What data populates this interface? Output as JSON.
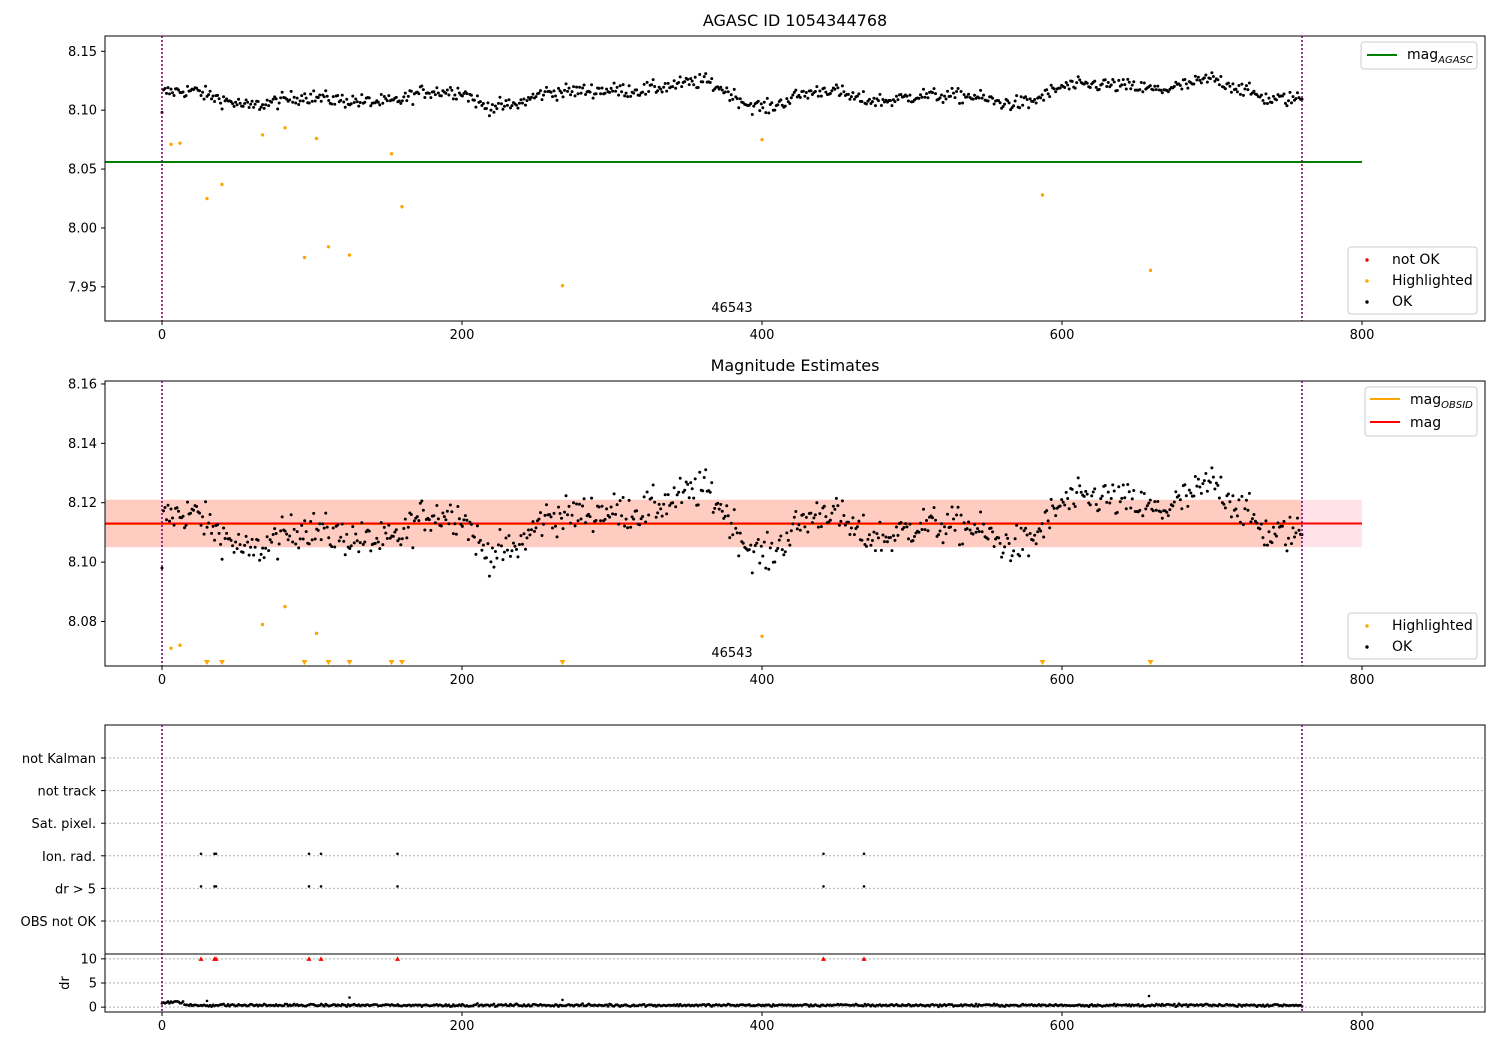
{
  "figure": {
    "top_title": "AGASC ID 1054344768",
    "middle_title": "Magnitude Estimates",
    "obsid_label": "46543"
  },
  "colors": {
    "ok": "#000000",
    "highlighted": "#ffa500",
    "not_ok": "#ff0000",
    "mag_agasc": "#008000",
    "mag_obsid": "#ffa500",
    "mag": "#ff0000",
    "band_mag": "#ffc0cb",
    "band_obsid": "#ffa07a",
    "obsid_boundary": "#800080",
    "grid": "#b0b0b0"
  },
  "chart_data": [
    {
      "type": "scatter",
      "title": "AGASC ID 1054344768",
      "xlim": [
        -38,
        882
      ],
      "ylim": [
        7.921,
        8.163
      ],
      "xticks": [
        0,
        200,
        400,
        600,
        800
      ],
      "yticks": [
        7.95,
        8.0,
        8.05,
        8.1,
        8.15
      ],
      "ytick_labels": [
        "7.95",
        "8.00",
        "8.05",
        "8.10",
        "8.15"
      ],
      "obsid_boundaries": [
        0,
        760
      ],
      "obsid_label": "46543",
      "hlines": [
        {
          "name": "mag_AGASC",
          "y": 8.056,
          "x": [
            -38,
            800
          ]
        }
      ],
      "legend_lines": [
        {
          "name": "mag",
          "sub": "AGASC"
        }
      ],
      "legend_markers": [
        {
          "name": "not OK",
          "kind": "not_ok"
        },
        {
          "name": "Highlighted",
          "kind": "highlighted"
        },
        {
          "name": "OK",
          "kind": "ok"
        }
      ],
      "highlighted": {
        "x": [
          6,
          12,
          30,
          40,
          67,
          82,
          95,
          103,
          111,
          125,
          153,
          160,
          267,
          400,
          587,
          659
        ],
        "y": [
          8.071,
          8.072,
          8.025,
          8.037,
          8.079,
          8.085,
          7.975,
          8.076,
          7.984,
          7.977,
          8.063,
          8.018,
          7.951,
          8.075,
          8.028,
          7.964
        ]
      },
      "ok_model": {
        "x_start": 0,
        "x_end": 760,
        "count": 760,
        "knots": [
          [
            0,
            8.115
          ],
          [
            20,
            8.117
          ],
          [
            40,
            8.109
          ],
          [
            58,
            8.103
          ],
          [
            75,
            8.107
          ],
          [
            95,
            8.112
          ],
          [
            115,
            8.109
          ],
          [
            138,
            8.107
          ],
          [
            155,
            8.107
          ],
          [
            175,
            8.116
          ],
          [
            200,
            8.116
          ],
          [
            215,
            8.103
          ],
          [
            235,
            8.104
          ],
          [
            255,
            8.115
          ],
          [
            290,
            8.117
          ],
          [
            320,
            8.117
          ],
          [
            345,
            8.122
          ],
          [
            362,
            8.125
          ],
          [
            375,
            8.117
          ],
          [
            392,
            8.104
          ],
          [
            405,
            8.102
          ],
          [
            425,
            8.113
          ],
          [
            445,
            8.118
          ],
          [
            465,
            8.109
          ],
          [
            485,
            8.108
          ],
          [
            505,
            8.113
          ],
          [
            520,
            8.112
          ],
          [
            540,
            8.112
          ],
          [
            560,
            8.106
          ],
          [
            578,
            8.106
          ],
          [
            600,
            8.12
          ],
          [
            625,
            8.122
          ],
          [
            645,
            8.12
          ],
          [
            665,
            8.117
          ],
          [
            685,
            8.122
          ],
          [
            700,
            8.127
          ],
          [
            720,
            8.118
          ],
          [
            738,
            8.109
          ],
          [
            760,
            8.11
          ]
        ],
        "amplitude": 0.0055
      }
    },
    {
      "type": "scatter",
      "title": "Magnitude Estimates",
      "xlim": [
        -38,
        882
      ],
      "ylim": [
        8.065,
        8.161
      ],
      "xticks": [
        0,
        200,
        400,
        600,
        800
      ],
      "yticks": [
        8.08,
        8.1,
        8.12,
        8.14,
        8.16
      ],
      "ytick_labels": [
        "8.08",
        "8.10",
        "8.12",
        "8.14",
        "8.16"
      ],
      "obsid_boundaries": [
        0,
        760
      ],
      "obsid_label": "46543",
      "mag_line": {
        "name": "mag",
        "y": 8.113,
        "band": [
          8.105,
          8.121
        ],
        "x": [
          -38,
          800
        ]
      },
      "mag_obsid_line": {
        "name": "mag_OBSID",
        "y": 8.113,
        "band": [
          8.105,
          8.121
        ],
        "x": [
          -38,
          760
        ]
      },
      "legend_lines": [
        {
          "name": "mag",
          "sub": "OBSID"
        },
        {
          "name": "mag",
          "sub": ""
        }
      ],
      "legend_markers": [
        {
          "name": "Highlighted",
          "kind": "highlighted"
        },
        {
          "name": "OK",
          "kind": "ok"
        }
      ],
      "highlighted": {
        "x": [
          6,
          12,
          67,
          82,
          103,
          400
        ],
        "y": [
          8.071,
          8.072,
          8.079,
          8.085,
          8.076,
          8.075
        ]
      },
      "below_range_x": [
        30,
        40,
        95,
        111,
        125,
        153,
        160,
        267,
        587,
        659
      ],
      "ok_model": "same as chart_data.0.ok_model"
    },
    {
      "type": "scatter",
      "title": "",
      "xlim": [
        -38,
        882
      ],
      "xticks": [
        0,
        200,
        400,
        600,
        800
      ],
      "obsid_boundaries": [
        0,
        760
      ],
      "flag_rows": [
        "not Kalman",
        "not track",
        "Sat. pixel.",
        "Ion. rad.",
        "dr > 5",
        "OBS not OK"
      ],
      "flags": {
        "Ion. rad.": [
          26,
          35,
          36,
          98,
          106,
          157,
          441,
          468
        ],
        "dr > 5": [
          26,
          35,
          36,
          98,
          106,
          157,
          441,
          468
        ]
      },
      "dr": {
        "ylabel": "dr",
        "ylim": [
          -1,
          11
        ],
        "yticks": [
          0,
          5,
          10
        ],
        "ytick_labels": [
          "0",
          "5",
          "10"
        ],
        "clipped_x": [
          26,
          35,
          36,
          98,
          106,
          157,
          441,
          468
        ],
        "clipped_value": 10,
        "spikes": [
          [
            125,
            2.0
          ],
          [
            267,
            1.5
          ],
          [
            658,
            2.3
          ],
          [
            30,
            1.3
          ]
        ],
        "baseline": 0.4
      }
    }
  ]
}
